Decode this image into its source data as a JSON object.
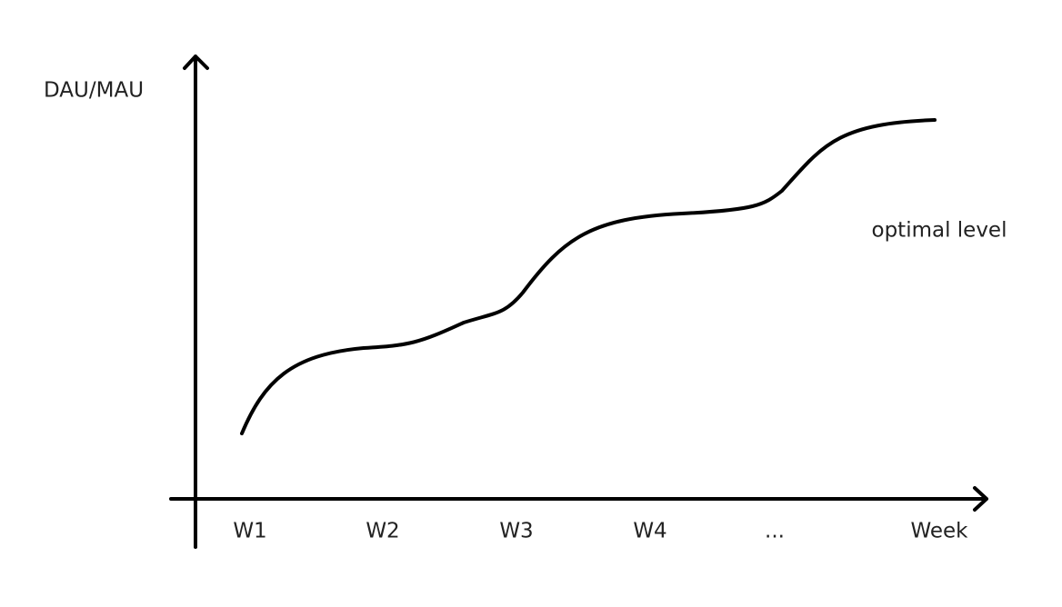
{
  "axes": {
    "y_label": "DAU/MAU",
    "x_label": "Week"
  },
  "x_ticks": [
    "W1",
    "W2",
    "W3",
    "W4",
    "..."
  ],
  "annotation": "optimal level"
}
